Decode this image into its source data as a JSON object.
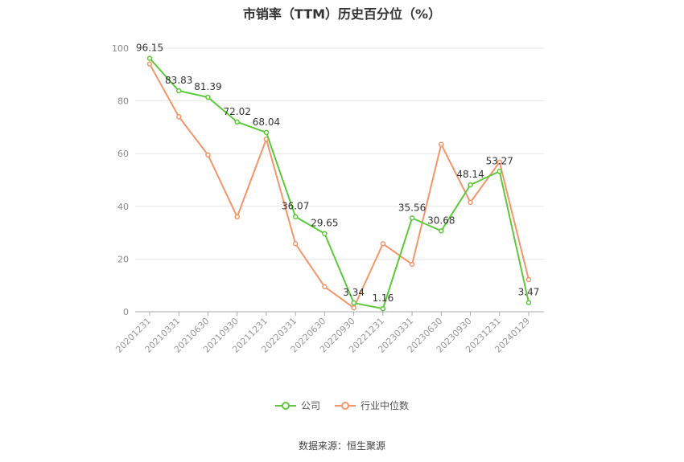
{
  "title": "市销率（TTM）历史百分位（%）",
  "source": "数据来源：恒生聚源",
  "chart_data": {
    "type": "line",
    "title": "市销率（TTM）历史百分位（%）",
    "categories": [
      "20201231",
      "20210331",
      "20210630",
      "20210930",
      "20211231",
      "20220331",
      "20220630",
      "20220930",
      "20221231",
      "20230331",
      "20230630",
      "20230930",
      "20231231",
      "20240129"
    ],
    "ylim": [
      0,
      100
    ],
    "yticks": [
      0,
      20,
      40,
      60,
      80,
      100
    ],
    "grid": true,
    "legend_position": "bottom",
    "series": [
      {
        "name": "公司",
        "color": "#5cc93a",
        "show_labels": true,
        "values": [
          96.15,
          83.83,
          81.39,
          72.02,
          68.04,
          36.07,
          29.65,
          3.34,
          1.16,
          35.56,
          30.68,
          48.14,
          53.27,
          3.47
        ]
      },
      {
        "name": "行业中位数",
        "color": "#f4956a",
        "show_labels": false,
        "values": [
          94.0,
          74.0,
          59.5,
          36.0,
          65.5,
          25.8,
          9.5,
          1.5,
          25.8,
          18.0,
          63.5,
          41.5,
          56.8,
          12.2
        ]
      }
    ]
  }
}
